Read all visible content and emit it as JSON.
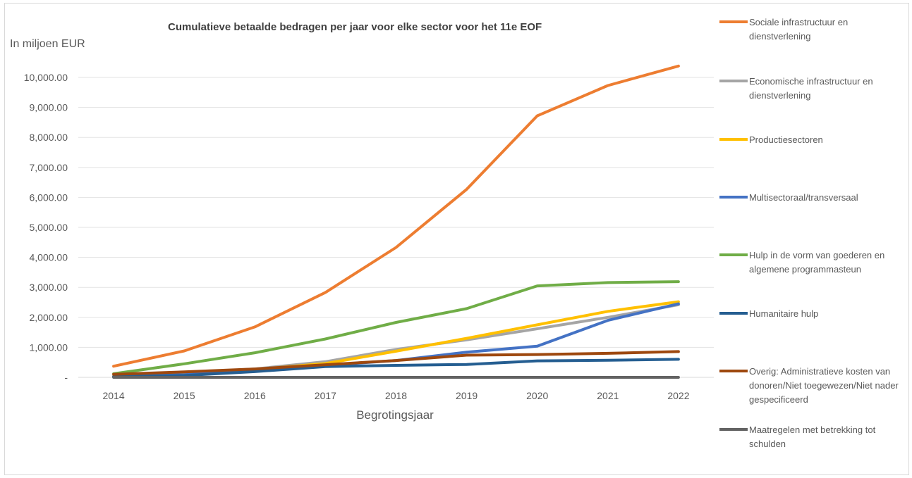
{
  "chart_data": {
    "type": "line",
    "title": "Cumulatieve betaalde bedragen per jaar voor elke sector voor het 11e EOF",
    "ylabel": "In miljoen EUR",
    "xlabel": "Begrotingsjaar",
    "x": [
      "2014",
      "2015",
      "2016",
      "2017",
      "2018",
      "2019",
      "2020",
      "2021",
      "2022"
    ],
    "ylim": [
      0,
      10000
    ],
    "yticks": [
      "-",
      "1,000.00",
      "2,000.00",
      "3,000.00",
      "4,000.00",
      "5,000.00",
      "6,000.00",
      "7,000.00",
      "8,000.00",
      "9,000.00",
      "10,000.00"
    ],
    "grid": true,
    "legend_position": "right",
    "series": [
      {
        "name": "Sociale infrastructuur en dienstverlening",
        "color": "#ED7D31",
        "values": [
          370,
          880,
          1680,
          2830,
          4330,
          6270,
          8720,
          9730,
          10380
        ]
      },
      {
        "name": "Economische infrastructuur en dienstverlening",
        "color": "#A5A5A5",
        "values": [
          40,
          150,
          280,
          520,
          930,
          1250,
          1620,
          2000,
          2420
        ]
      },
      {
        "name": "Productiesectoren",
        "color": "#FFC000",
        "values": [
          30,
          130,
          260,
          460,
          870,
          1300,
          1750,
          2200,
          2520
        ]
      },
      {
        "name": "Multisectoraal/transversaal",
        "color": "#4472C4",
        "values": [
          20,
          90,
          230,
          400,
          560,
          840,
          1040,
          1900,
          2450
        ]
      },
      {
        "name": "Hulp in de vorm van goederen en algemene programmasteun",
        "color": "#70AD47",
        "values": [
          120,
          450,
          820,
          1280,
          1830,
          2290,
          3050,
          3160,
          3190
        ]
      },
      {
        "name": "Humanitaire hulp",
        "color": "#255E91",
        "values": [
          20,
          60,
          190,
          360,
          400,
          430,
          550,
          570,
          600
        ]
      },
      {
        "name": "Overig: Administratieve kosten van donoren/Niet toegewezen/Niet nader gespecificeerd",
        "color": "#9E480E",
        "values": [
          100,
          180,
          280,
          420,
          560,
          740,
          760,
          800,
          860
        ]
      },
      {
        "name": "Maatregelen met betrekking tot schulden",
        "color": "#636363",
        "values": [
          0,
          0,
          0,
          0,
          0,
          0,
          0,
          0,
          0
        ]
      }
    ]
  }
}
